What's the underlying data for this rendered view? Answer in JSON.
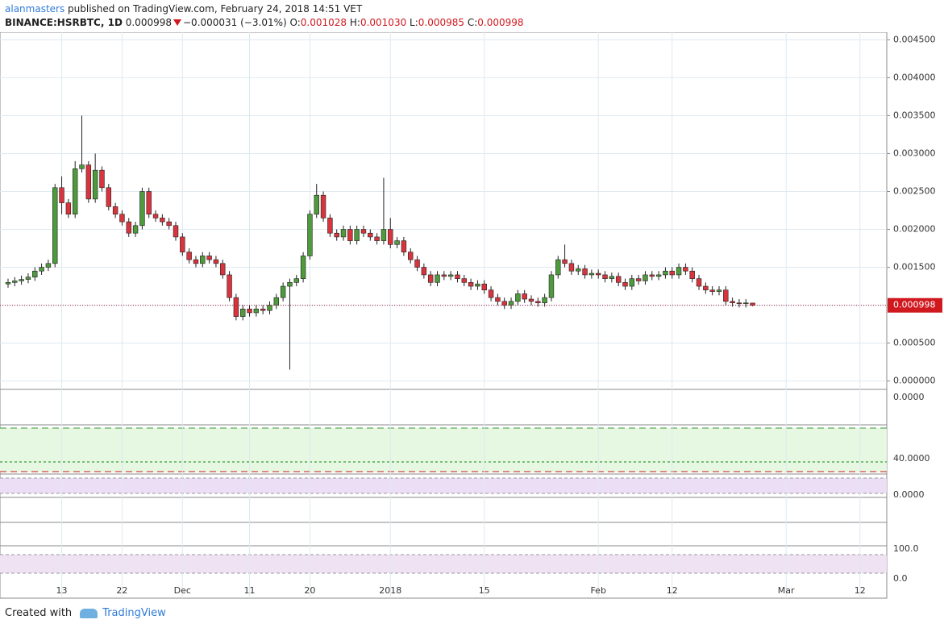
{
  "header": {
    "author": "alanmasters",
    "published": "published on TradingView.com, February 24, 2018 14:51 VET",
    "symbol": "BINANCE:HSRBTC, 1D",
    "last": "0.000998",
    "change": "−0.000031 (−3.01%)",
    "o_label": "O:",
    "open": "0.001028",
    "h_label": "H:",
    "high": "0.001030",
    "l_label": "L:",
    "low": "0.000985",
    "c_label": "C:",
    "close": "0.000998"
  },
  "footer": {
    "created": "Created with",
    "brand": "TradingView"
  },
  "panes": [
    {
      "label": "0.0000"
    },
    {
      "label": "40.0000"
    },
    {
      "label": "0.0000"
    },
    {
      "label": "100.0"
    },
    {
      "label": "0.0"
    }
  ],
  "chart_data": {
    "type": "candlestick",
    "up_color": "#4e9a3c",
    "down_color": "#d8343e",
    "grid": true,
    "xlim": [
      -1.2,
      131
    ],
    "ylim": [
      -0.0001,
      0.0046
    ],
    "xticks": [
      {
        "value": 8,
        "label": "13"
      },
      {
        "value": 17,
        "label": "22"
      },
      {
        "value": 26,
        "label": "Dec"
      },
      {
        "value": 36,
        "label": "11"
      },
      {
        "value": 45,
        "label": "20"
      },
      {
        "value": 57,
        "label": "2018"
      },
      {
        "value": 71,
        "label": "15"
      },
      {
        "value": 88,
        "label": "Feb"
      },
      {
        "value": 99,
        "label": "12"
      },
      {
        "value": 116,
        "label": "Mar"
      },
      {
        "value": 127,
        "label": "12"
      }
    ],
    "yticks": [
      {
        "value": 0,
        "label": "0.000000"
      },
      {
        "value": 0.0005,
        "label": "0.000500"
      },
      {
        "value": 0.001,
        "label": "0.001000"
      },
      {
        "value": 0.0015,
        "label": "0.001500"
      },
      {
        "value": 0.002,
        "label": "0.002000"
      },
      {
        "value": 0.0025,
        "label": "0.002500"
      },
      {
        "value": 0.003,
        "label": "0.003000"
      },
      {
        "value": 0.0035,
        "label": "0.003500"
      },
      {
        "value": 0.004,
        "label": "0.004000"
      },
      {
        "value": 0.0045,
        "label": "0.004500"
      }
    ],
    "last_price": {
      "value": 0.000998,
      "label": "0.000998"
    },
    "candles": [
      [
        0.00128,
        0.00135,
        0.00123,
        0.0013
      ],
      [
        0.0013,
        0.00137,
        0.00125,
        0.00132
      ],
      [
        0.00132,
        0.00139,
        0.00127,
        0.00134
      ],
      [
        0.00134,
        0.00142,
        0.00129,
        0.00137
      ],
      [
        0.00137,
        0.0015,
        0.00132,
        0.00145
      ],
      [
        0.00145,
        0.00155,
        0.0014,
        0.0015
      ],
      [
        0.0015,
        0.0016,
        0.00145,
        0.00155
      ],
      [
        0.00155,
        0.0026,
        0.0015,
        0.00255
      ],
      [
        0.00255,
        0.0027,
        0.0022,
        0.00235
      ],
      [
        0.00235,
        0.0024,
        0.00215,
        0.0022
      ],
      [
        0.0022,
        0.0029,
        0.00215,
        0.0028
      ],
      [
        0.0028,
        0.0035,
        0.00275,
        0.00285
      ],
      [
        0.00285,
        0.0029,
        0.00235,
        0.0024
      ],
      [
        0.0024,
        0.003,
        0.00235,
        0.00278
      ],
      [
        0.00278,
        0.00283,
        0.0025,
        0.00255
      ],
      [
        0.00255,
        0.0026,
        0.00225,
        0.0023
      ],
      [
        0.0023,
        0.00235,
        0.00215,
        0.0022
      ],
      [
        0.0022,
        0.00225,
        0.00205,
        0.0021
      ],
      [
        0.0021,
        0.00215,
        0.0019,
        0.00195
      ],
      [
        0.00195,
        0.0021,
        0.0019,
        0.00205
      ],
      [
        0.00205,
        0.00255,
        0.002,
        0.0025
      ],
      [
        0.0025,
        0.00255,
        0.00215,
        0.0022
      ],
      [
        0.0022,
        0.00225,
        0.0021,
        0.00215
      ],
      [
        0.00215,
        0.0022,
        0.00205,
        0.0021
      ],
      [
        0.0021,
        0.00215,
        0.002,
        0.00205
      ],
      [
        0.00205,
        0.0021,
        0.00185,
        0.0019
      ],
      [
        0.0019,
        0.00195,
        0.00165,
        0.0017
      ],
      [
        0.0017,
        0.00175,
        0.00155,
        0.0016
      ],
      [
        0.0016,
        0.00165,
        0.0015,
        0.00155
      ],
      [
        0.00155,
        0.0017,
        0.0015,
        0.00165
      ],
      [
        0.00165,
        0.0017,
        0.00155,
        0.0016
      ],
      [
        0.0016,
        0.00165,
        0.0015,
        0.00155
      ],
      [
        0.00155,
        0.0016,
        0.00135,
        0.0014
      ],
      [
        0.0014,
        0.00145,
        0.00105,
        0.0011
      ],
      [
        0.0011,
        0.00115,
        0.0008,
        0.00085
      ],
      [
        0.00085,
        0.001,
        0.0008,
        0.00095
      ],
      [
        0.00095,
        0.001,
        0.00085,
        0.0009
      ],
      [
        0.0009,
        0.001,
        0.00085,
        0.00095
      ],
      [
        0.00095,
        0.001,
        0.00088,
        0.00093
      ],
      [
        0.00093,
        0.00105,
        0.00088,
        0.001
      ],
      [
        0.001,
        0.00115,
        0.00095,
        0.0011
      ],
      [
        0.0011,
        0.0013,
        0.00105,
        0.00125
      ],
      [
        0.00125,
        0.00135,
        0.00015,
        0.0013
      ],
      [
        0.0013,
        0.0014,
        0.00125,
        0.00135
      ],
      [
        0.00135,
        0.0017,
        0.0013,
        0.00165
      ],
      [
        0.00165,
        0.00225,
        0.0016,
        0.0022
      ],
      [
        0.0022,
        0.0026,
        0.00215,
        0.00245
      ],
      [
        0.00245,
        0.0025,
        0.0021,
        0.00215
      ],
      [
        0.00215,
        0.0022,
        0.0019,
        0.00195
      ],
      [
        0.00195,
        0.002,
        0.00185,
        0.0019
      ],
      [
        0.0019,
        0.00205,
        0.00185,
        0.002
      ],
      [
        0.002,
        0.00205,
        0.0018,
        0.00185
      ],
      [
        0.00185,
        0.00205,
        0.0018,
        0.002
      ],
      [
        0.002,
        0.00205,
        0.0019,
        0.00195
      ],
      [
        0.00195,
        0.002,
        0.00185,
        0.0019
      ],
      [
        0.0019,
        0.00195,
        0.0018,
        0.00185
      ],
      [
        0.00185,
        0.00268,
        0.0018,
        0.002
      ],
      [
        0.002,
        0.00215,
        0.00175,
        0.0018
      ],
      [
        0.0018,
        0.0019,
        0.00175,
        0.00185
      ],
      [
        0.00185,
        0.0019,
        0.00165,
        0.0017
      ],
      [
        0.0017,
        0.00175,
        0.00155,
        0.0016
      ],
      [
        0.0016,
        0.00165,
        0.00145,
        0.0015
      ],
      [
        0.0015,
        0.00155,
        0.00135,
        0.0014
      ],
      [
        0.0014,
        0.00145,
        0.00125,
        0.0013
      ],
      [
        0.0013,
        0.00145,
        0.00125,
        0.0014
      ],
      [
        0.0014,
        0.00145,
        0.00133,
        0.00138
      ],
      [
        0.00138,
        0.00145,
        0.00133,
        0.0014
      ],
      [
        0.0014,
        0.00145,
        0.0013,
        0.00135
      ],
      [
        0.00135,
        0.0014,
        0.00125,
        0.0013
      ],
      [
        0.0013,
        0.00135,
        0.0012,
        0.00125
      ],
      [
        0.00125,
        0.00133,
        0.0012,
        0.00128
      ],
      [
        0.00128,
        0.00133,
        0.00115,
        0.0012
      ],
      [
        0.0012,
        0.00125,
        0.00105,
        0.0011
      ],
      [
        0.0011,
        0.00115,
        0.001,
        0.00105
      ],
      [
        0.00105,
        0.0011,
        0.00095,
        0.001
      ],
      [
        0.001,
        0.0011,
        0.00095,
        0.00105
      ],
      [
        0.00105,
        0.0012,
        0.001,
        0.00115
      ],
      [
        0.00115,
        0.0012,
        0.00103,
        0.00108
      ],
      [
        0.00108,
        0.00113,
        0.001,
        0.00105
      ],
      [
        0.00105,
        0.0011,
        0.00098,
        0.00103
      ],
      [
        0.00103,
        0.00115,
        0.00098,
        0.0011
      ],
      [
        0.0011,
        0.00145,
        0.00105,
        0.0014
      ],
      [
        0.0014,
        0.00165,
        0.00135,
        0.0016
      ],
      [
        0.0016,
        0.0018,
        0.0015,
        0.00155
      ],
      [
        0.00155,
        0.0016,
        0.0014,
        0.00145
      ],
      [
        0.00145,
        0.00153,
        0.0014,
        0.00148
      ],
      [
        0.00148,
        0.00153,
        0.00135,
        0.0014
      ],
      [
        0.0014,
        0.00147,
        0.00135,
        0.00142
      ],
      [
        0.00142,
        0.00147,
        0.00135,
        0.0014
      ],
      [
        0.0014,
        0.00145,
        0.0013,
        0.00135
      ],
      [
        0.00135,
        0.00143,
        0.0013,
        0.00138
      ],
      [
        0.00138,
        0.00143,
        0.00125,
        0.0013
      ],
      [
        0.0013,
        0.00135,
        0.0012,
        0.00125
      ],
      [
        0.00125,
        0.0014,
        0.0012,
        0.00135
      ],
      [
        0.00135,
        0.0014,
        0.00127,
        0.00132
      ],
      [
        0.00132,
        0.00145,
        0.00127,
        0.0014
      ],
      [
        0.0014,
        0.00145,
        0.00133,
        0.00138
      ],
      [
        0.00138,
        0.00145,
        0.00133,
        0.0014
      ],
      [
        0.0014,
        0.0015,
        0.00135,
        0.00145
      ],
      [
        0.00145,
        0.0015,
        0.00135,
        0.0014
      ],
      [
        0.0014,
        0.00155,
        0.00135,
        0.0015
      ],
      [
        0.0015,
        0.00155,
        0.0014,
        0.00145
      ],
      [
        0.00145,
        0.0015,
        0.0013,
        0.00135
      ],
      [
        0.00135,
        0.0014,
        0.0012,
        0.00125
      ],
      [
        0.00125,
        0.0013,
        0.00115,
        0.0012
      ],
      [
        0.0012,
        0.00125,
        0.00113,
        0.00118
      ],
      [
        0.00118,
        0.00125,
        0.00113,
        0.0012
      ],
      [
        0.0012,
        0.00125,
        0.001,
        0.00105
      ],
      [
        0.00105,
        0.0011,
        0.00098,
        0.00103
      ],
      [
        0.00103,
        0.00108,
        0.00097,
        0.00102
      ],
      [
        0.00102,
        0.00108,
        0.00097,
        0.00103
      ],
      [
        0.001028,
        0.00103,
        0.000985,
        0.000998
      ]
    ]
  }
}
